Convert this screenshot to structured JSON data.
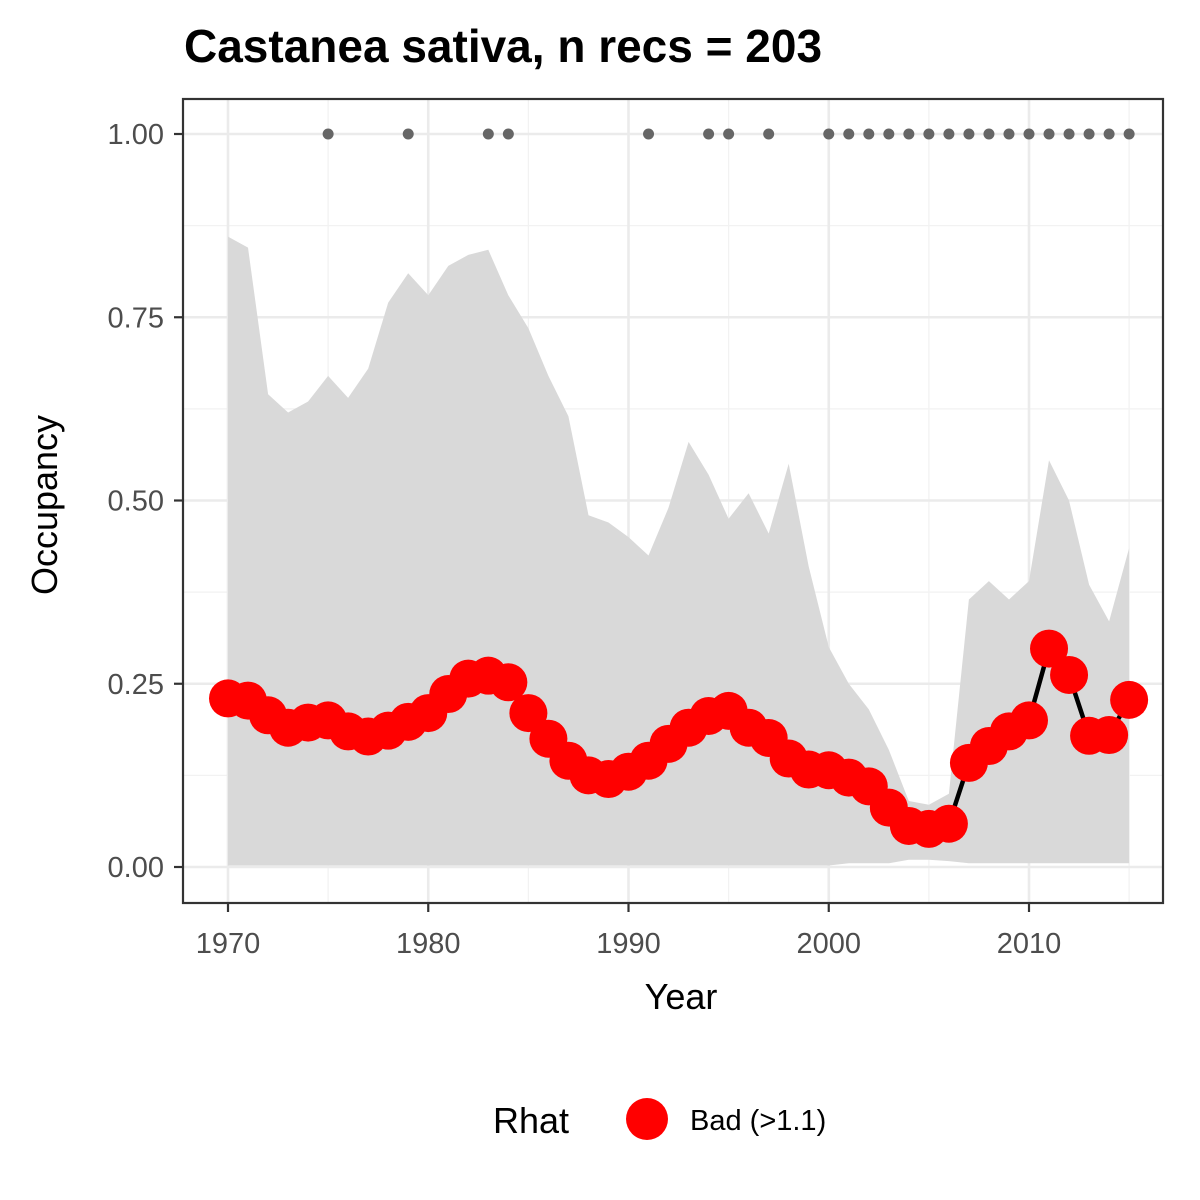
{
  "chart_data": {
    "type": "line",
    "title": "Castanea sativa, n recs = 203",
    "xlabel": "Year",
    "ylabel": "Occupancy",
    "xlim": [
      1967.8,
      1917.0
    ],
    "ylim": [
      -0.045,
      1.045
    ],
    "x_ticks": [
      1970,
      1980,
      1990,
      2000,
      2010
    ],
    "x_tick_labels": [
      "1970",
      "1980",
      "1990",
      "2000",
      "2010"
    ],
    "y_ticks": [
      0,
      0.25,
      0.5,
      0.75,
      1.0
    ],
    "y_tick_labels": [
      "0.00",
      "0.25",
      "0.50",
      "0.75",
      "1.00"
    ],
    "grid": true,
    "legend": {
      "title": "Rhat",
      "placement": "bottom",
      "entries": [
        {
          "label": "Bad (>1.1)",
          "color": "#ff0000"
        }
      ]
    },
    "colors": {
      "points": "#ff0000",
      "line": "#000000",
      "ribbon": "#d9d9d9",
      "records": "#666666",
      "panel_border": "#333333",
      "grid": "#ebebeb"
    },
    "years": [
      1970,
      1971,
      1972,
      1973,
      1974,
      1975,
      1976,
      1977,
      1978,
      1979,
      1980,
      1981,
      1982,
      1983,
      1984,
      1985,
      1986,
      1987,
      1988,
      1989,
      1990,
      1991,
      1992,
      1993,
      1994,
      1995,
      1996,
      1997,
      1998,
      1999,
      2000,
      2001,
      2002,
      2003,
      2004,
      2005,
      2006,
      2007,
      2008,
      2009,
      2010,
      2011,
      2012,
      2013,
      2014,
      2015
    ],
    "series": [
      {
        "name": "Bad (>1.1)",
        "values": [
          0.23,
          0.227,
          0.207,
          0.19,
          0.197,
          0.2,
          0.185,
          0.178,
          0.186,
          0.198,
          0.21,
          0.236,
          0.257,
          0.261,
          0.252,
          0.21,
          0.175,
          0.145,
          0.125,
          0.12,
          0.13,
          0.145,
          0.168,
          0.19,
          0.206,
          0.213,
          0.19,
          0.176,
          0.148,
          0.133,
          0.132,
          0.122,
          0.11,
          0.081,
          0.056,
          0.052,
          0.059,
          0.142,
          0.165,
          0.185,
          0.2,
          0.298,
          0.262,
          0.179,
          0.18,
          0.228
        ]
      }
    ],
    "ribbon_upper": [
      0.86,
      0.845,
      0.645,
      0.62,
      0.635,
      0.67,
      0.64,
      0.68,
      0.77,
      0.81,
      0.78,
      0.82,
      0.835,
      0.842,
      0.78,
      0.735,
      0.67,
      0.615,
      0.48,
      0.47,
      0.45,
      0.425,
      0.49,
      0.58,
      0.535,
      0.475,
      0.51,
      0.455,
      0.55,
      0.41,
      0.3,
      0.25,
      0.215,
      0.16,
      0.09,
      0.085,
      0.1,
      0.365,
      0.39,
      0.365,
      0.39,
      0.555,
      0.5,
      0.385,
      0.335,
      0.435
    ],
    "ribbon_lower": [
      0.002,
      0.002,
      0.002,
      0.002,
      0.002,
      0.002,
      0.002,
      0.002,
      0.002,
      0.002,
      0.002,
      0.002,
      0.002,
      0.002,
      0.002,
      0.002,
      0.002,
      0.002,
      0.002,
      0.002,
      0.002,
      0.002,
      0.002,
      0.002,
      0.002,
      0.002,
      0.002,
      0.002,
      0.002,
      0.002,
      0.002,
      0.005,
      0.005,
      0.005,
      0.01,
      0.01,
      0.008,
      0.005,
      0.005,
      0.005,
      0.005,
      0.005,
      0.005,
      0.005,
      0.005,
      0.005
    ],
    "record_years": [
      1975,
      1979,
      1983,
      1984,
      1991,
      1994,
      1995,
      1997,
      2000,
      2001,
      2002,
      2003,
      2004,
      2005,
      2006,
      2007,
      2008,
      2009,
      2010,
      2011,
      2012,
      2013,
      2014,
      2015
    ],
    "record_value": 1.0
  }
}
